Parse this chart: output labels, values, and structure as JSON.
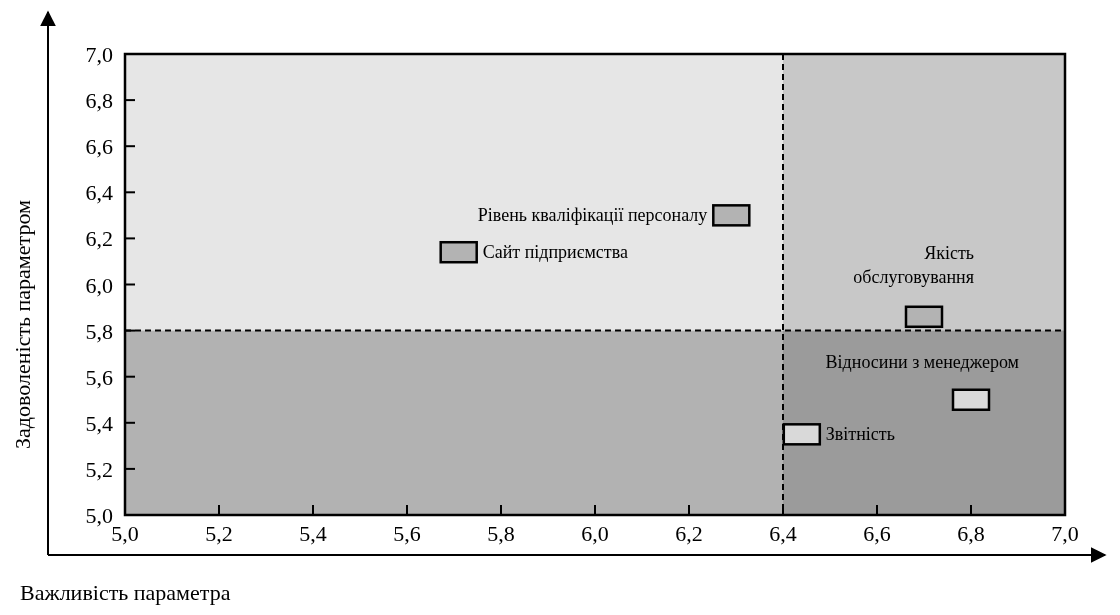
{
  "chart_data": {
    "type": "scatter",
    "xlabel": "Важливість параметра",
    "ylabel": "Задоволеність параметром",
    "x": [
      6.29,
      5.71,
      6.7,
      6.8,
      6.44
    ],
    "values": [
      6.3,
      6.14,
      5.86,
      5.5,
      5.35
    ],
    "colors": [
      "#b3b3b3",
      "#b3b3b3",
      "#b3b3b3",
      "#d9d9d9",
      "#d9d9d9"
    ],
    "marker": "square",
    "annotations": [
      {
        "text": "Рівень кваліфікації персоналу",
        "x": 6.29,
        "y": 6.3
      },
      {
        "text": "Сайт підприємства",
        "x": 5.71,
        "y": 6.14
      },
      {
        "text": "Якість обслуговування",
        "x": 6.7,
        "y": 5.86
      },
      {
        "text": "Відносини з менеджером",
        "x": 6.8,
        "y": 5.5
      },
      {
        "text": "Звітність",
        "x": 6.44,
        "y": 5.35
      }
    ],
    "xlim": [
      5.0,
      7.0
    ],
    "xticks": [
      {
        "value": 5.0,
        "label": "5,0"
      },
      {
        "value": 5.2,
        "label": "5,2"
      },
      {
        "value": 5.4,
        "label": "5,4"
      },
      {
        "value": 5.6,
        "label": "5,6"
      },
      {
        "value": 5.8,
        "label": "5,8"
      },
      {
        "value": 6.0,
        "label": "6,0"
      },
      {
        "value": 6.2,
        "label": "6,2"
      },
      {
        "value": 6.4,
        "label": "6,4"
      },
      {
        "value": 6.6,
        "label": "6,6"
      },
      {
        "value": 6.8,
        "label": "6,8"
      },
      {
        "value": 7.0,
        "label": "7,0"
      }
    ],
    "ylim": [
      5.0,
      7.0
    ],
    "yticks": [
      {
        "value": 5.0,
        "label": "5,0"
      },
      {
        "value": 5.2,
        "label": "5,2"
      },
      {
        "value": 5.4,
        "label": "5,4"
      },
      {
        "value": 5.6,
        "label": "5,6"
      },
      {
        "value": 5.8,
        "label": "5,8"
      },
      {
        "value": 6.0,
        "label": "6,0"
      },
      {
        "value": 6.2,
        "label": "6,2"
      },
      {
        "value": 6.4,
        "label": "6,4"
      },
      {
        "value": 6.6,
        "label": "6,6"
      },
      {
        "value": 6.8,
        "label": "6,8"
      },
      {
        "value": 7.0,
        "label": "7,0"
      }
    ],
    "bands": [
      {
        "axis": "x",
        "from": 6.4,
        "to": 7.0,
        "color": "#dedede"
      },
      {
        "axis": "y",
        "from": 5.0,
        "to": 5.8,
        "color": "#c6c6c6"
      }
    ],
    "ref_lines": [
      {
        "axis": "x",
        "value": 6.4,
        "line_style": "dashed",
        "color": "#000000"
      },
      {
        "axis": "y",
        "value": 5.8,
        "line_style": "dashed",
        "color": "#000000"
      }
    ],
    "grid": false
  }
}
